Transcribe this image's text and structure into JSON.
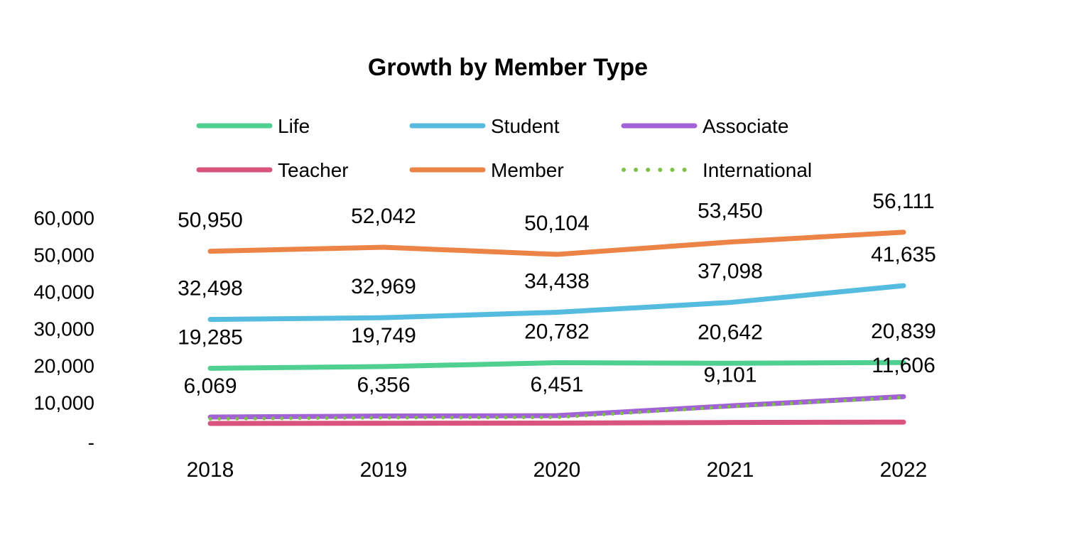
{
  "chart_data": {
    "type": "line",
    "title": "Growth by Member Type",
    "categories": [
      "2018",
      "2019",
      "2020",
      "2021",
      "2022"
    ],
    "ylim": [
      0,
      60000
    ],
    "y_ticks": [
      0,
      10000,
      20000,
      30000,
      40000,
      50000,
      60000
    ],
    "y_tick_labels": [
      "-",
      "10,000",
      "20,000",
      "30,000",
      "40,000",
      "50,000",
      "60,000"
    ],
    "grid": false,
    "legend_position": "top",
    "series": [
      {
        "name": "Life",
        "color": "#4fd091",
        "style": "solid",
        "values": [
          19285,
          19749,
          20782,
          20642,
          20839
        ],
        "labels": [
          "19,285",
          "19,749",
          "20,782",
          "20,642",
          "20,839"
        ]
      },
      {
        "name": "Student",
        "color": "#55bce0",
        "style": "solid",
        "values": [
          32498,
          32969,
          34438,
          37098,
          41635
        ],
        "labels": [
          "32,498",
          "32,969",
          "34,438",
          "37,098",
          "41,635"
        ]
      },
      {
        "name": "Associate",
        "color": "#a062d4",
        "style": "solid",
        "values": [
          6069,
          6356,
          6451,
          9101,
          11606
        ],
        "labels": [
          "6,069",
          "6,356",
          "6,451",
          "9,101",
          "11,606"
        ]
      },
      {
        "name": "Teacher",
        "color": "#d9547c",
        "style": "solid",
        "values": [
          4350,
          4400,
          4450,
          4600,
          4700
        ]
      },
      {
        "name": "Member",
        "color": "#ed8447",
        "style": "solid",
        "values": [
          50950,
          52042,
          50104,
          53450,
          56111
        ],
        "labels": [
          "50,950",
          "52,042",
          "50,104",
          "53,450",
          "56,111"
        ]
      },
      {
        "name": "International",
        "color": "#7ec04a",
        "style": "dotted",
        "values": [
          5600,
          5900,
          6000,
          8900,
          11400
        ]
      }
    ]
  }
}
